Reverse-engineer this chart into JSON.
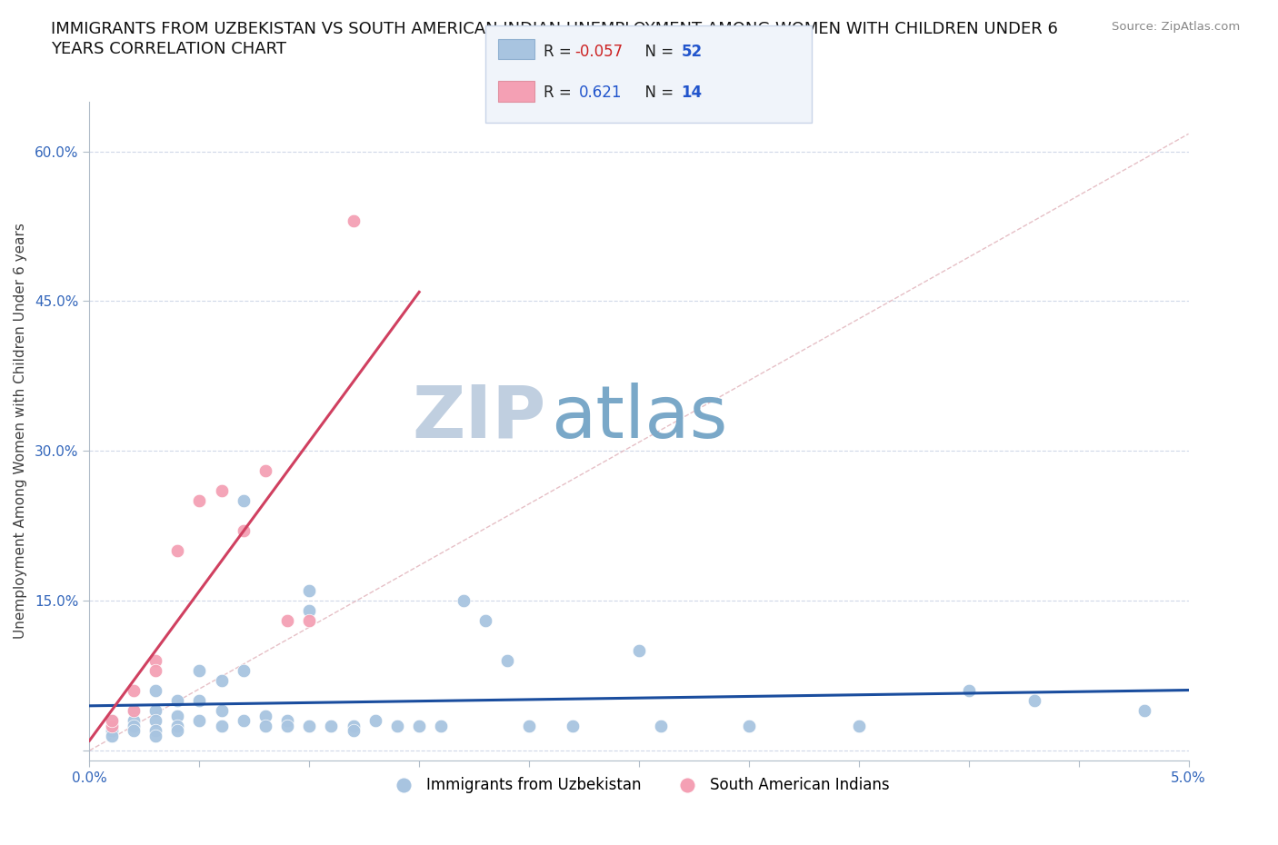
{
  "title_line1": "IMMIGRANTS FROM UZBEKISTAN VS SOUTH AMERICAN INDIAN UNEMPLOYMENT AMONG WOMEN WITH CHILDREN UNDER 6",
  "title_line2": "YEARS CORRELATION CHART",
  "source_text": "Source: ZipAtlas.com",
  "ylabel": "Unemployment Among Women with Children Under 6 years",
  "xlim": [
    0.0,
    0.05
  ],
  "ylim": [
    -0.01,
    0.65
  ],
  "xticks": [
    0.0,
    0.005,
    0.01,
    0.015,
    0.02,
    0.025,
    0.03,
    0.035,
    0.04,
    0.045,
    0.05
  ],
  "xticklabels": [
    "0.0%",
    "",
    "",
    "",
    "",
    "",
    "",
    "",
    "",
    "",
    "5.0%"
  ],
  "yticks": [
    0.0,
    0.15,
    0.3,
    0.45,
    0.6
  ],
  "yticklabels": [
    "",
    "15.0%",
    "30.0%",
    "45.0%",
    "60.0%"
  ],
  "blue_R": -0.057,
  "blue_N": 52,
  "pink_R": 0.621,
  "pink_N": 14,
  "blue_color": "#a8c4e0",
  "pink_color": "#f4a0b4",
  "blue_line_color": "#1a4d9e",
  "pink_line_color": "#d04060",
  "diagonal_color": "#e0b0b8",
  "grid_color": "#d0d8e8",
  "watermark_zip_color": "#c0cfe0",
  "watermark_atlas_color": "#7aa8c8",
  "blue_scatter": [
    [
      0.001,
      0.025
    ],
    [
      0.001,
      0.03
    ],
    [
      0.001,
      0.02
    ],
    [
      0.001,
      0.015
    ],
    [
      0.002,
      0.04
    ],
    [
      0.002,
      0.03
    ],
    [
      0.002,
      0.025
    ],
    [
      0.002,
      0.02
    ],
    [
      0.003,
      0.06
    ],
    [
      0.003,
      0.04
    ],
    [
      0.003,
      0.03
    ],
    [
      0.003,
      0.02
    ],
    [
      0.003,
      0.015
    ],
    [
      0.004,
      0.05
    ],
    [
      0.004,
      0.035
    ],
    [
      0.004,
      0.025
    ],
    [
      0.004,
      0.02
    ],
    [
      0.005,
      0.08
    ],
    [
      0.005,
      0.05
    ],
    [
      0.005,
      0.03
    ],
    [
      0.006,
      0.07
    ],
    [
      0.006,
      0.04
    ],
    [
      0.006,
      0.025
    ],
    [
      0.007,
      0.25
    ],
    [
      0.007,
      0.08
    ],
    [
      0.007,
      0.03
    ],
    [
      0.008,
      0.035
    ],
    [
      0.008,
      0.025
    ],
    [
      0.009,
      0.03
    ],
    [
      0.009,
      0.025
    ],
    [
      0.01,
      0.16
    ],
    [
      0.01,
      0.14
    ],
    [
      0.01,
      0.025
    ],
    [
      0.011,
      0.025
    ],
    [
      0.012,
      0.025
    ],
    [
      0.012,
      0.02
    ],
    [
      0.013,
      0.03
    ],
    [
      0.014,
      0.025
    ],
    [
      0.015,
      0.025
    ],
    [
      0.016,
      0.025
    ],
    [
      0.017,
      0.15
    ],
    [
      0.018,
      0.13
    ],
    [
      0.019,
      0.09
    ],
    [
      0.02,
      0.025
    ],
    [
      0.022,
      0.025
    ],
    [
      0.025,
      0.1
    ],
    [
      0.026,
      0.025
    ],
    [
      0.03,
      0.025
    ],
    [
      0.035,
      0.025
    ],
    [
      0.04,
      0.06
    ],
    [
      0.043,
      0.05
    ],
    [
      0.048,
      0.04
    ]
  ],
  "pink_scatter": [
    [
      0.001,
      0.025
    ],
    [
      0.001,
      0.03
    ],
    [
      0.002,
      0.06
    ],
    [
      0.002,
      0.04
    ],
    [
      0.003,
      0.09
    ],
    [
      0.003,
      0.08
    ],
    [
      0.004,
      0.2
    ],
    [
      0.005,
      0.25
    ],
    [
      0.006,
      0.26
    ],
    [
      0.007,
      0.22
    ],
    [
      0.008,
      0.28
    ],
    [
      0.009,
      0.13
    ],
    [
      0.01,
      0.13
    ],
    [
      0.012,
      0.53
    ]
  ],
  "legend_box_color": "#f0f4fa",
  "legend_border_color": "#c8d4e8"
}
